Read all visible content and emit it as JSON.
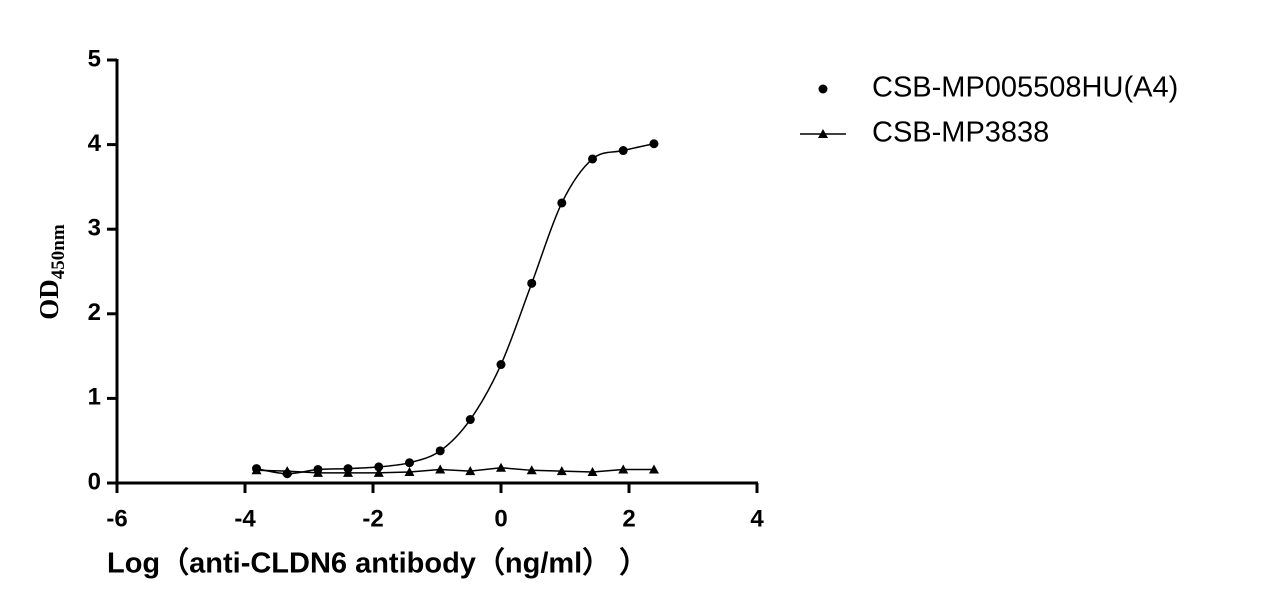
{
  "chart_data": {
    "type": "scatter",
    "ylabel": {
      "main": "OD",
      "subscript": "450nm"
    },
    "xlabel": "Log（anti-CLDN6 antibody（ng/ml）  ）",
    "xlim": [
      -6,
      4
    ],
    "xticks": [
      -6,
      -4,
      -2,
      0,
      2,
      4
    ],
    "ylim": [
      0,
      5
    ],
    "yticks": [
      0,
      1,
      2,
      3,
      4,
      5
    ],
    "grid": false,
    "legend": "upper right",
    "series": [
      {
        "name": "CSB-MP005508HU(A4)",
        "color": "#000000",
        "marker": "circle",
        "line": "smooth",
        "x": [
          -3.82,
          -3.34,
          -2.86,
          -2.39,
          -1.91,
          -1.43,
          -0.95,
          -0.48,
          0,
          0.48,
          0.95,
          1.43,
          1.91,
          2.39
        ],
        "values": [
          0.17,
          0.11,
          0.16,
          0.17,
          0.19,
          0.24,
          0.38,
          0.75,
          1.4,
          2.36,
          3.31,
          3.83,
          3.93,
          4.01
        ]
      },
      {
        "name": "CSB-MP3838",
        "color": "#000000",
        "marker": "triangle",
        "line": "straight",
        "x": [
          -3.82,
          -3.34,
          -2.86,
          -2.39,
          -1.91,
          -1.43,
          -0.95,
          -0.48,
          0,
          0.48,
          0.95,
          1.43,
          1.91,
          2.39
        ],
        "values": [
          0.15,
          0.14,
          0.12,
          0.12,
          0.12,
          0.13,
          0.16,
          0.14,
          0.18,
          0.15,
          0.14,
          0.13,
          0.16,
          0.16
        ]
      }
    ]
  }
}
